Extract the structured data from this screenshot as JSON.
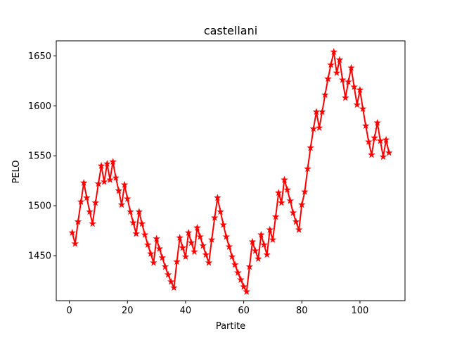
{
  "chart_data": {
    "type": "line",
    "title": "castellani",
    "xlabel": "Partite",
    "ylabel": "PELO",
    "xlim": [
      -4.5,
      115.5
    ],
    "ylim": [
      1405,
      1665
    ],
    "xticks": [
      0,
      20,
      40,
      60,
      80,
      100
    ],
    "yticks": [
      1450,
      1500,
      1550,
      1600,
      1650
    ],
    "grid": false,
    "line_color": "#ff0000",
    "marker": "star",
    "series": [
      {
        "x": [
          1,
          2,
          3,
          4,
          5,
          6,
          7,
          8,
          9,
          10,
          11,
          12,
          13,
          14,
          15,
          16,
          17,
          18,
          19,
          20,
          21,
          22,
          23,
          24,
          25,
          26,
          27,
          28,
          29,
          30,
          31,
          32,
          33,
          34,
          35,
          36,
          37,
          38,
          39,
          40,
          41,
          42,
          43,
          44,
          45,
          46,
          47,
          48,
          49,
          50,
          51,
          52,
          53,
          54,
          55,
          56,
          57,
          58,
          59,
          60,
          61,
          62,
          63,
          64,
          65,
          66,
          67,
          68,
          69,
          70,
          71,
          72,
          73,
          74,
          75,
          76,
          77,
          78,
          79,
          80,
          81,
          82,
          83,
          84,
          85,
          86,
          87,
          88,
          89,
          90,
          91,
          92,
          93,
          94,
          95,
          96,
          97,
          98,
          99,
          100,
          101,
          102,
          103,
          104,
          105,
          106,
          107,
          108,
          109,
          110
        ],
        "values": [
          1473,
          1462,
          1484,
          1504,
          1523,
          1508,
          1494,
          1482,
          1503,
          1522,
          1540,
          1524,
          1542,
          1526,
          1544,
          1528,
          1515,
          1501,
          1521,
          1507,
          1494,
          1483,
          1472,
          1494,
          1482,
          1471,
          1461,
          1452,
          1443,
          1467,
          1457,
          1448,
          1439,
          1431,
          1424,
          1418,
          1444,
          1468,
          1458,
          1449,
          1473,
          1463,
          1454,
          1478,
          1469,
          1460,
          1451,
          1443,
          1466,
          1488,
          1508,
          1494,
          1481,
          1469,
          1459,
          1449,
          1441,
          1433,
          1426,
          1419,
          1414,
          1439,
          1464,
          1455,
          1447,
          1471,
          1461,
          1451,
          1476,
          1466,
          1489,
          1513,
          1503,
          1526,
          1516,
          1505,
          1493,
          1484,
          1476,
          1501,
          1514,
          1537,
          1558,
          1577,
          1594,
          1578,
          1594,
          1611,
          1627,
          1641,
          1654,
          1633,
          1646,
          1626,
          1608,
          1624,
          1638,
          1619,
          1601,
          1616,
          1597,
          1580,
          1564,
          1551,
          1568,
          1583,
          1565,
          1549,
          1566,
          1553
        ]
      }
    ]
  }
}
